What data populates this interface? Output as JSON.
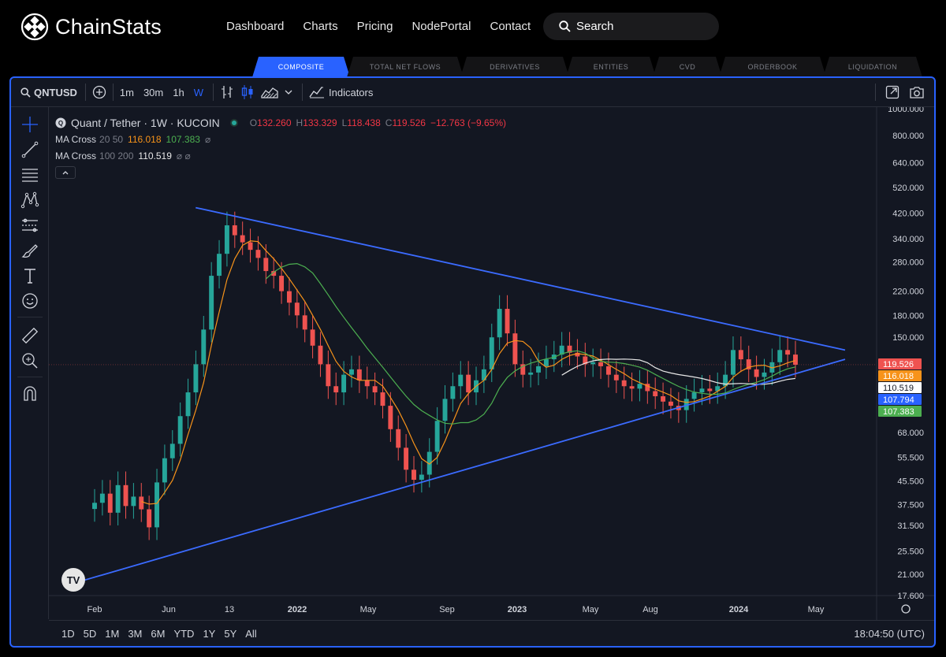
{
  "nav": {
    "brand": "ChainStats",
    "links": [
      "Dashboard",
      "Charts",
      "Pricing",
      "NodePortal",
      "Contact"
    ],
    "search_label": "Search"
  },
  "tabs": [
    "COMPOSITE",
    "TOTAL NET FLOWS",
    "DERIVATIVES",
    "ENTITIES",
    "CVD",
    "ORDERBOOK",
    "LIQUIDATION"
  ],
  "toolbar": {
    "symbol": "QNTUSD",
    "intervals": [
      "1m",
      "30m",
      "1h",
      "W"
    ],
    "active_interval": "W",
    "indicators_label": "Indicators"
  },
  "legend": {
    "title": "Quant / Tether · 1W · KUCOIN",
    "ohlc": {
      "o_label": "O",
      "o": "132.260",
      "h_label": "H",
      "h": "133.329",
      "l_label": "L",
      "l": "118.438",
      "c_label": "C",
      "c": "119.526",
      "change": "−12.763 (−9.65%)"
    },
    "ma1": {
      "name": "MA Cross",
      "params": "20 50",
      "v1": "116.018",
      "v2": "107.383",
      "tail": "⌀"
    },
    "ma2": {
      "name": "MA Cross",
      "params": "100 200",
      "v1": "110.519",
      "tail": "⌀ ⌀"
    }
  },
  "ranges": [
    "1D",
    "5D",
    "1M",
    "3M",
    "6M",
    "YTD",
    "1Y",
    "5Y",
    "All"
  ],
  "clock": "18:04:50 (UTC)",
  "colors": {
    "accent": "#2962ff",
    "up": "#26a69a",
    "down": "#ef5350",
    "ma_fast": "#f7931a",
    "ma_slow": "#4caf50",
    "ma_long": "#e8e8e8",
    "trendline": "#3b6bff",
    "background": "#131722"
  },
  "chart_data": {
    "type": "candlestick",
    "title": "Quant / Tether · 1W · KUCOIN",
    "y_scale": "log",
    "ylim": [
      17.6,
      1000
    ],
    "y_ticks": [
      "1000.000",
      "800.000",
      "640.000",
      "520.000",
      "420.000",
      "340.000",
      "280.000",
      "220.000",
      "180.000",
      "150.000",
      "68.000",
      "55.500",
      "45.500",
      "37.500",
      "31.500",
      "25.500",
      "21.000",
      "17.600"
    ],
    "x_ticks": [
      "Feb",
      "Jun",
      "13",
      "2022",
      "May",
      "Sep",
      "2023",
      "May",
      "Aug",
      "2024",
      "May"
    ],
    "price_labels": [
      {
        "value": "119.526",
        "color": "#ef5350"
      },
      {
        "value": "116.018",
        "color": "#f7931a"
      },
      {
        "value": "110.519",
        "color": "#ffffff"
      },
      {
        "value": "107.794",
        "color": "#2962ff"
      },
      {
        "value": "107.383",
        "color": "#4caf50"
      }
    ],
    "close_series_approx": [
      38,
      41,
      35,
      44,
      37,
      40,
      36,
      31,
      45,
      55,
      62,
      78,
      95,
      120,
      160,
      250,
      300,
      380,
      350,
      330,
      310,
      290,
      260,
      250,
      220,
      200,
      180,
      160,
      140,
      120,
      100,
      95,
      110,
      115,
      105,
      100,
      95,
      85,
      70,
      60,
      50,
      46,
      48,
      58,
      75,
      90,
      100,
      110,
      95,
      105,
      115,
      150,
      190,
      155,
      120,
      110,
      112,
      118,
      125,
      130,
      140,
      132,
      128,
      120,
      122,
      118,
      110,
      105,
      100,
      98,
      102,
      96,
      92,
      88,
      85,
      82,
      90,
      95,
      98,
      96,
      100,
      110,
      135,
      125,
      115,
      108,
      112,
      122,
      135,
      130,
      119.5
    ],
    "trendlines": [
      {
        "name": "upper",
        "from": {
          "date": "2021-07",
          "price": 440
        },
        "to": {
          "date": "2024-06",
          "price": 135
        }
      },
      {
        "name": "lower",
        "from": {
          "date": "2021-01",
          "price": 20
        },
        "to": {
          "date": "2024-06",
          "price": 125
        }
      }
    ]
  }
}
